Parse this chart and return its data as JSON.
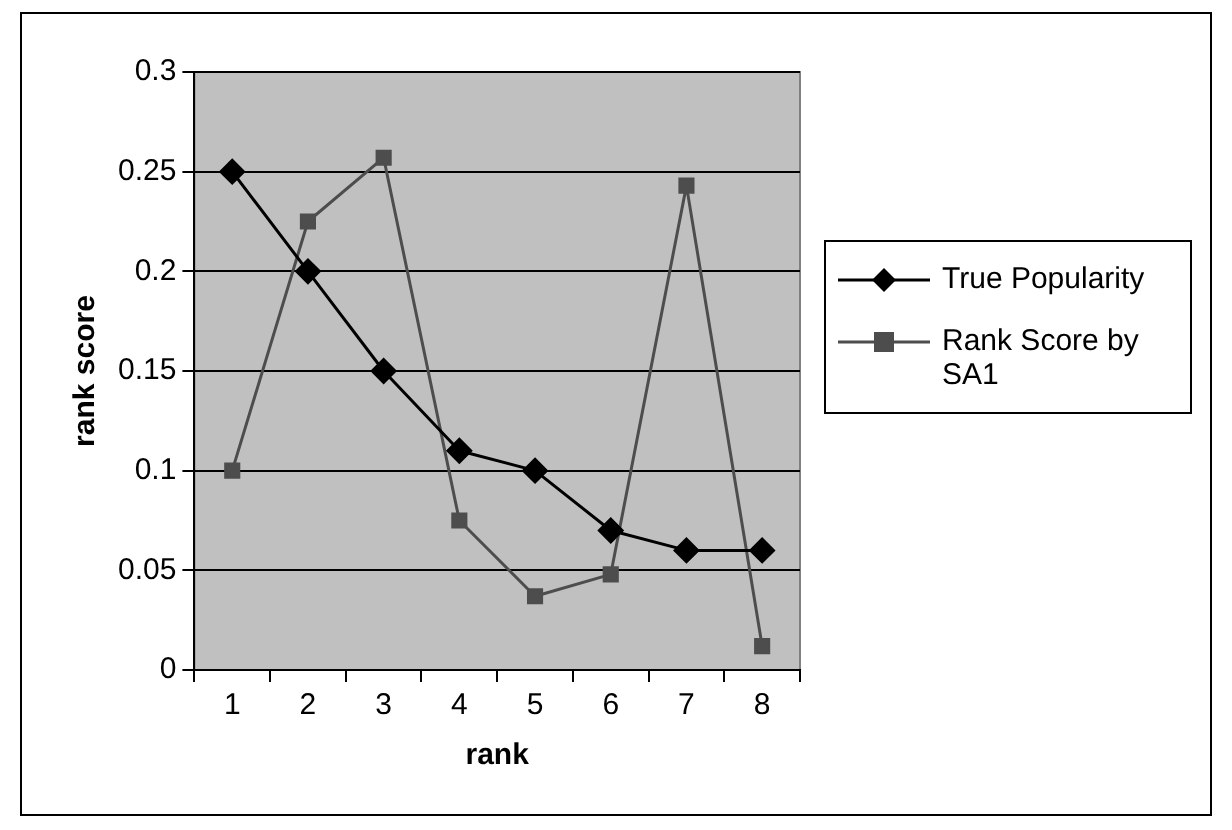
{
  "chart_data": {
    "type": "line",
    "xlabel": "rank",
    "ylabel": "rank score",
    "categories": [
      "1",
      "2",
      "3",
      "4",
      "5",
      "6",
      "7",
      "8"
    ],
    "series": [
      {
        "name": "True Popularity",
        "color": "#000000",
        "marker": "diamond",
        "values": [
          0.25,
          0.2,
          0.15,
          0.11,
          0.1,
          0.07,
          0.06,
          0.06
        ]
      },
      {
        "name": "Rank Score by SA1",
        "color": "#4d4d4d",
        "marker": "square",
        "values": [
          0.1,
          0.225,
          0.257,
          0.075,
          0.037,
          0.048,
          0.243,
          0.012
        ]
      }
    ],
    "ylim": [
      0,
      0.3
    ],
    "yticks": [
      0,
      0.05,
      0.1,
      0.15,
      0.2,
      0.25,
      0.3
    ],
    "grid": "y",
    "legend": "right"
  }
}
